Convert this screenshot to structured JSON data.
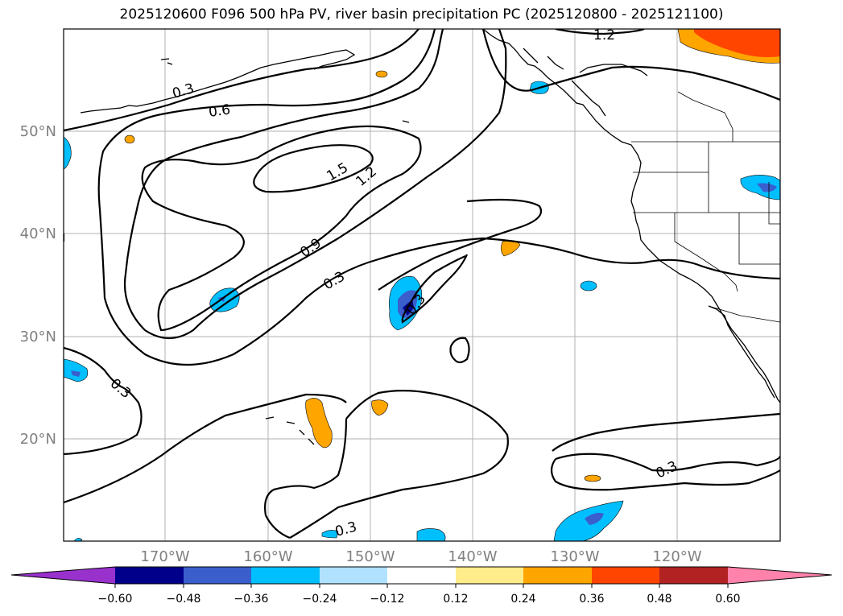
{
  "title": "2025120600 F096 500 hPa PV, river basin precipitation PC (2025120800 - 2025121100)",
  "map": {
    "lat_labels": [
      "50°N",
      "40°N",
      "30°N",
      "20°N"
    ],
    "lon_labels": [
      "170°W",
      "160°W",
      "150°W",
      "140°W",
      "130°W",
      "120°W"
    ],
    "contour_labels": [
      "1.2",
      "0.3",
      "0.6",
      "1.5",
      "1.2",
      "0.9",
      "0.3",
      "0.3",
      "0.3",
      "0.3",
      "0.3"
    ]
  },
  "colorbar": {
    "ticks": [
      "−0.60",
      "−0.48",
      "−0.36",
      "−0.24",
      "−0.12",
      "0.12",
      "0.24",
      "0.36",
      "0.48",
      "0.60"
    ],
    "colors": [
      "#9932CC",
      "#00008B",
      "#3A5FCD",
      "#00BFFF",
      "#B0E2FF",
      "#FFFFFF",
      "#FFEC8B",
      "#FFA500",
      "#FF4500",
      "#B22222",
      "#FF82AB"
    ]
  }
}
